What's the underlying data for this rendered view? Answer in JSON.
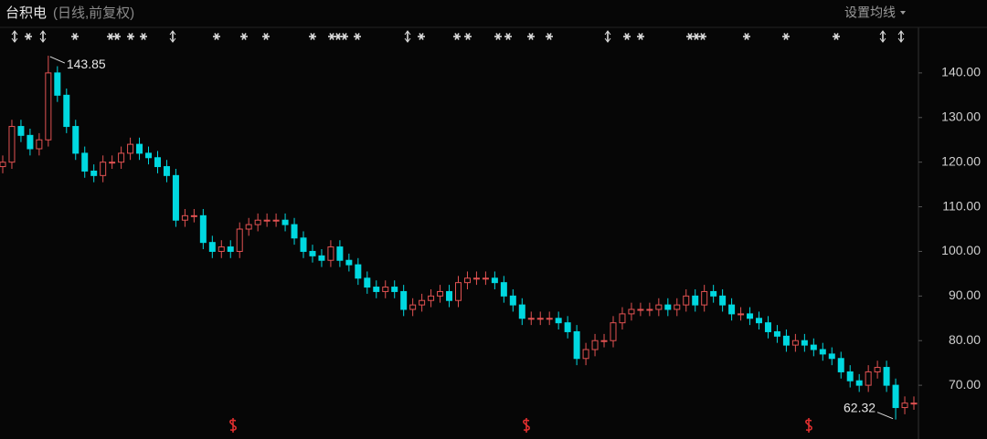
{
  "chart_data": {
    "type": "candlestick",
    "title": "台积电",
    "subtitle": "(日线,前复权)",
    "settings_label": "设置均线",
    "annotations": [
      "143.85",
      "62.32"
    ],
    "up_color": "#e25252",
    "down_color": "#00d8e0",
    "ylim": [
      60,
      150
    ],
    "yticks": [
      {
        "value": 70,
        "label": "70.00"
      },
      {
        "value": 80,
        "label": "80.00"
      },
      {
        "value": 90,
        "label": "90.00"
      },
      {
        "value": 100,
        "label": "100.00"
      },
      {
        "value": 110,
        "label": "110.00"
      },
      {
        "value": 120,
        "label": "120.00"
      },
      {
        "value": 130,
        "label": "130.00"
      },
      {
        "value": 140,
        "label": "140.00"
      }
    ],
    "grid": false,
    "open": [
      119,
      120,
      128,
      126,
      123,
      125,
      140,
      135,
      128,
      122,
      118,
      117,
      120,
      120,
      122,
      124,
      122,
      121,
      119,
      117,
      107,
      108,
      108,
      102,
      100,
      101,
      100,
      105,
      106,
      107,
      107,
      107,
      106,
      103,
      100,
      99,
      98,
      101,
      98,
      97,
      94,
      92,
      91,
      92,
      91,
      87,
      88,
      89,
      90,
      91,
      89,
      93,
      94,
      94,
      94,
      93,
      90,
      88,
      85,
      85,
      85,
      85,
      84,
      82,
      76,
      78,
      80,
      80,
      84,
      86,
      87,
      87,
      87,
      88,
      87,
      88,
      90,
      88,
      91,
      90,
      88,
      86,
      86,
      85,
      84,
      82,
      81,
      79,
      80,
      79,
      78,
      77,
      76,
      73,
      71,
      70,
      73,
      74,
      70,
      65,
      66
    ],
    "high": [
      121.5,
      129.5,
      129.5,
      127.5,
      126.5,
      143.85,
      141.5,
      136.5,
      129.5,
      123.5,
      119.5,
      121.5,
      121.5,
      123.5,
      125.5,
      125.5,
      123.5,
      122.5,
      120.5,
      118.5,
      109.5,
      109.5,
      109.5,
      103.5,
      102.5,
      102.5,
      106.5,
      107.5,
      108.5,
      108.5,
      108.5,
      108.5,
      107.5,
      104.5,
      101.5,
      100.5,
      102.5,
      102.5,
      99.5,
      98.5,
      95.5,
      93.5,
      93.5,
      93.5,
      92.5,
      89.5,
      90.5,
      91.5,
      92.5,
      92.5,
      94.5,
      95.5,
      95.5,
      95.5,
      95.5,
      94.5,
      91.5,
      89.5,
      86.5,
      86.5,
      86.5,
      86.5,
      85.5,
      83.5,
      79.5,
      81.5,
      81.5,
      85.5,
      87.5,
      88.5,
      88.5,
      88.5,
      89.5,
      89.5,
      89.5,
      91.5,
      91.5,
      92.5,
      92.5,
      91.5,
      89.5,
      87.5,
      87.5,
      86.5,
      85.5,
      83.5,
      82.5,
      81.5,
      81.5,
      80.5,
      79.5,
      78.5,
      77.5,
      74.5,
      72.5,
      74.5,
      75.5,
      75.5,
      71.5,
      67.5,
      67.5
    ],
    "low": [
      117.5,
      118.5,
      124.5,
      121.5,
      121.5,
      123.5,
      133.5,
      126.5,
      120.5,
      116.5,
      115.5,
      115.5,
      118.5,
      118.5,
      120.5,
      120.5,
      119.5,
      117.5,
      115.5,
      105.5,
      105.5,
      106.5,
      100.5,
      98.5,
      98.5,
      98.5,
      98.5,
      103.5,
      104.5,
      105.5,
      105.5,
      104.5,
      101.5,
      98.5,
      97.5,
      96.5,
      96.5,
      96.5,
      95.5,
      92.5,
      90.5,
      89.5,
      89.5,
      89.5,
      85.5,
      85.5,
      86.5,
      87.5,
      88.5,
      87.5,
      87.5,
      91.5,
      92.5,
      92.5,
      91.5,
      88.5,
      86.5,
      83.5,
      83.5,
      83.5,
      83.5,
      82.5,
      80.5,
      74.5,
      74.5,
      76.5,
      78.5,
      78.5,
      82.5,
      84.5,
      85.5,
      85.5,
      85.5,
      85.5,
      85.5,
      86.5,
      86.5,
      86.5,
      88.5,
      86.5,
      84.5,
      84.5,
      83.5,
      82.5,
      80.5,
      79.5,
      77.5,
      77.5,
      77.5,
      76.5,
      75.5,
      74.5,
      71.5,
      69.5,
      68.5,
      68.5,
      71.5,
      68.5,
      62.32,
      63.5,
      64.5
    ],
    "close": [
      120,
      128,
      126,
      123,
      125,
      140,
      135,
      128,
      122,
      118,
      117,
      120,
      120,
      122,
      124,
      122,
      121,
      119,
      117,
      107,
      108,
      108,
      102,
      100,
      101,
      100,
      105,
      106,
      107,
      107,
      107,
      106,
      103,
      100,
      99,
      98,
      101,
      98,
      97,
      94,
      92,
      91,
      92,
      91,
      87,
      88,
      89,
      90,
      91,
      89,
      93,
      94,
      94,
      94,
      93,
      90,
      88,
      85,
      85,
      85,
      85,
      84,
      82,
      76,
      78,
      80,
      80,
      84,
      86,
      87,
      87,
      87,
      88,
      87,
      88,
      90,
      88,
      91,
      90,
      88,
      86,
      86,
      85,
      84,
      82,
      81,
      79,
      80,
      79,
      78,
      77,
      76,
      73,
      71,
      70,
      73,
      74,
      70,
      65,
      66,
      66
    ]
  }
}
